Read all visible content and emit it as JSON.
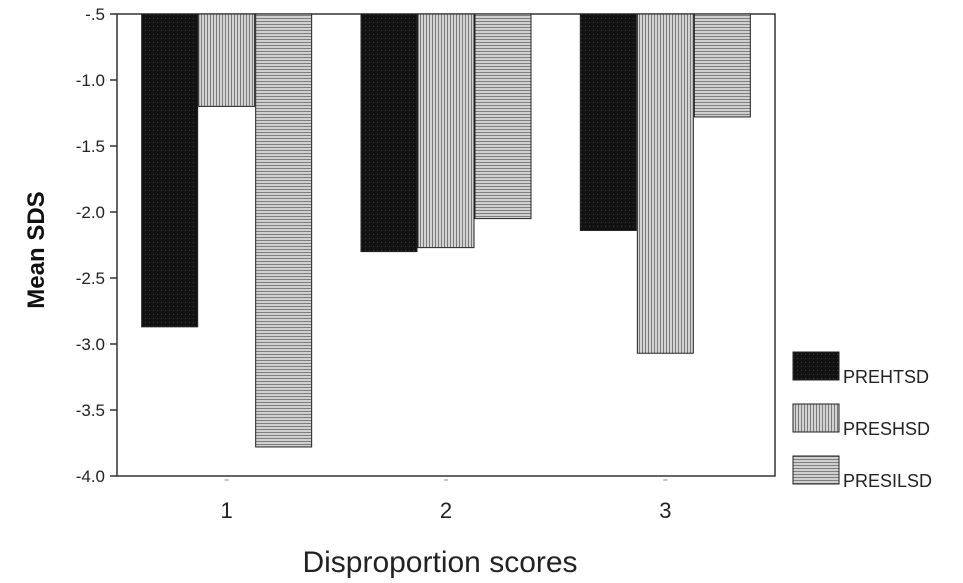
{
  "chart_data": {
    "type": "bar",
    "title": "",
    "xlabel": "Disproportion scores",
    "ylabel": "Mean  SDS",
    "categories": [
      "1",
      "2",
      "3"
    ],
    "ylim": [
      -4.0,
      -0.5
    ],
    "yticks": [
      "-.5",
      "-1.0",
      "-1.5",
      "-2.0",
      "-2.5",
      "-3.0",
      "-3.5",
      "-4.0"
    ],
    "ytick_values": [
      -0.5,
      -1.0,
      -1.5,
      -2.0,
      -2.5,
      -3.0,
      -3.5,
      -4.0
    ],
    "bars_hang_from_top": true,
    "legend_position": "bottom-right",
    "series": [
      {
        "name": "PREHTSD",
        "values": [
          -2.87,
          -2.3,
          -2.14
        ],
        "fill": "#111111"
      },
      {
        "name": "PRESHSD",
        "values": [
          -1.2,
          -2.27,
          -3.07
        ],
        "fill": "#b8b8b8"
      },
      {
        "name": "PRESILSD",
        "values": [
          -3.78,
          -2.05,
          -1.28
        ],
        "fill": "#a6a6a6"
      }
    ]
  }
}
